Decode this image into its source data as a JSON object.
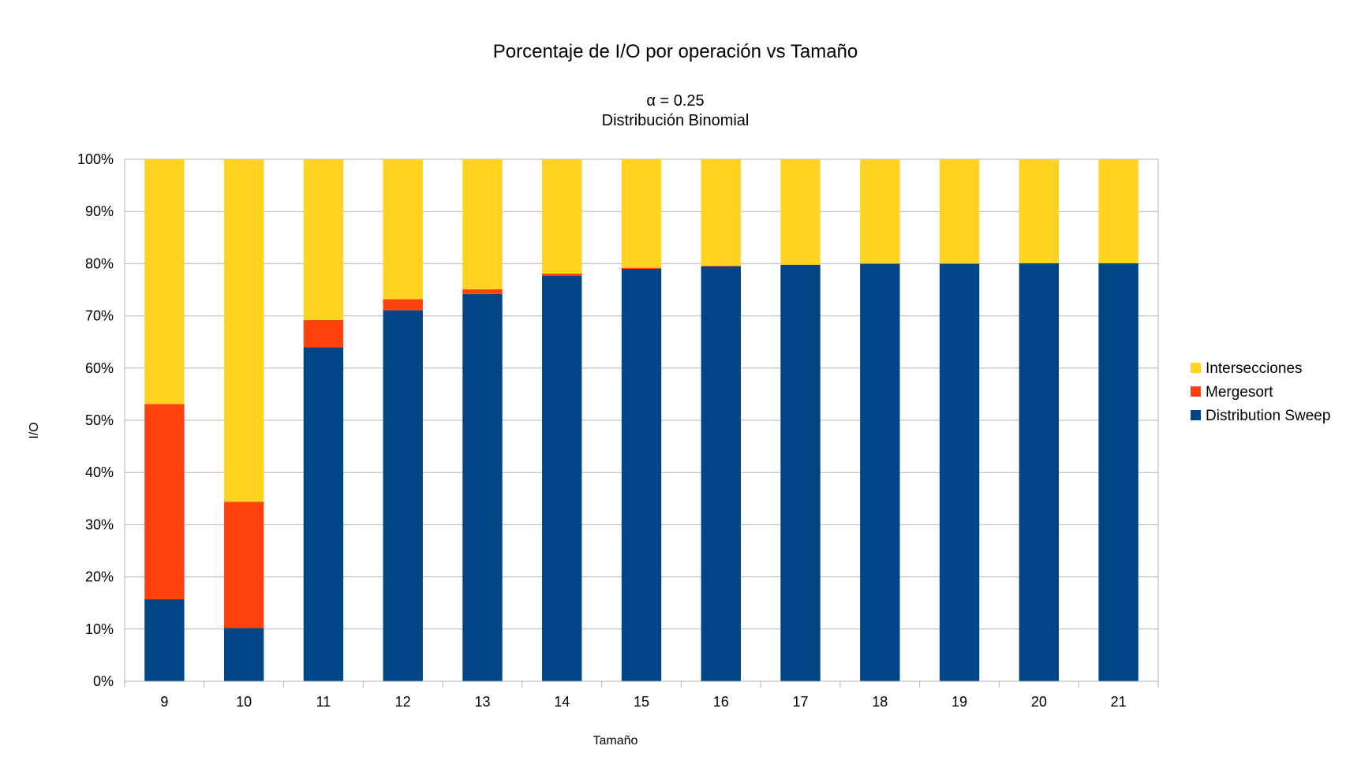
{
  "chart_data": {
    "type": "bar",
    "stacked": true,
    "percent_stacked": true,
    "title": "Porcentaje de I/O por operación vs Tamaño",
    "subtitle_lines": [
      "α = 0.25",
      "Distribución Binomial"
    ],
    "xlabel": "Tamaño",
    "ylabel": "I/O",
    "ylim": [
      0,
      100
    ],
    "y_ticks": [
      "0%",
      "10%",
      "20%",
      "30%",
      "40%",
      "50%",
      "60%",
      "70%",
      "80%",
      "90%",
      "100%"
    ],
    "grid": true,
    "legend_position": "right",
    "categories": [
      "9",
      "10",
      "11",
      "12",
      "13",
      "14",
      "15",
      "16",
      "17",
      "18",
      "19",
      "20",
      "21"
    ],
    "series": [
      {
        "name": "Distribution Sweep",
        "color": "#004586",
        "values": [
          15.7,
          10.2,
          64.0,
          71.1,
          74.2,
          77.7,
          79.0,
          79.5,
          79.8,
          80.0,
          80.0,
          80.1,
          80.1
        ]
      },
      {
        "name": "Mergesort",
        "color": "#ff420e",
        "values": [
          37.4,
          24.2,
          5.2,
          2.1,
          0.9,
          0.4,
          0.2,
          0.1,
          0.0,
          0.0,
          0.0,
          0.0,
          0.0
        ]
      },
      {
        "name": "Intersecciones",
        "color": "#ffd320",
        "values": [
          46.9,
          65.6,
          30.8,
          26.8,
          24.9,
          21.9,
          20.8,
          20.4,
          20.2,
          20.0,
          20.0,
          19.9,
          19.9
        ]
      }
    ],
    "legend_order": [
      "Intersecciones",
      "Mergesort",
      "Distribution Sweep"
    ]
  }
}
